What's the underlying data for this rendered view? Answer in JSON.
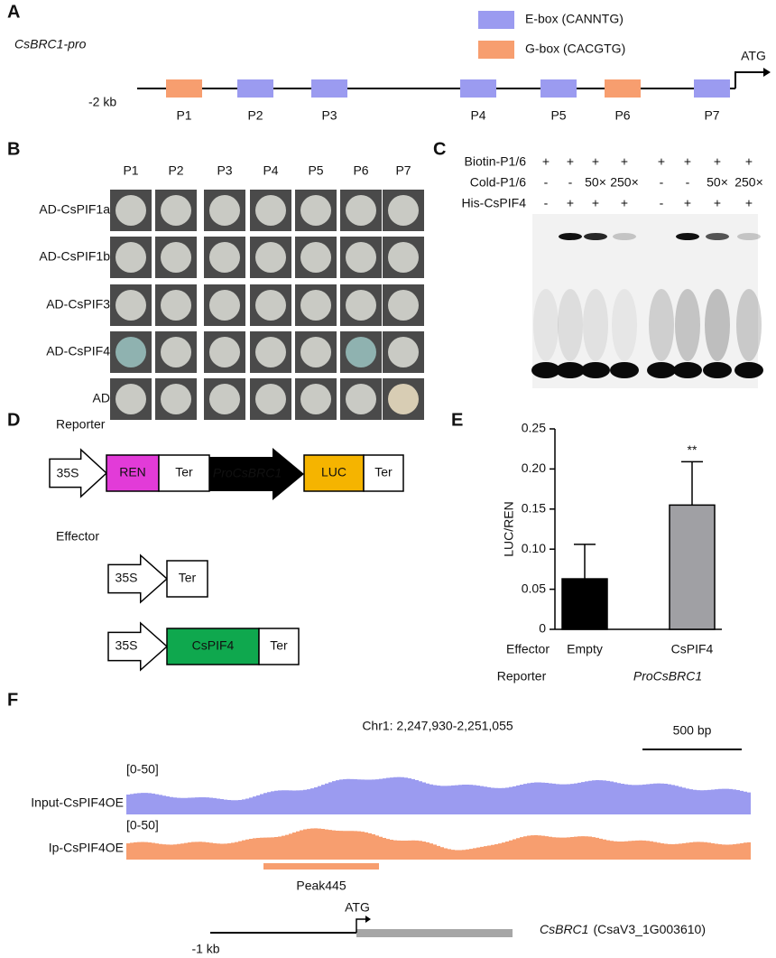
{
  "panel_a": {
    "label": "A",
    "promoter": "CsBRC1-pro",
    "legend": [
      {
        "name": "E-box (CANNTG)",
        "color": "#9b9bf0"
      },
      {
        "name": "G-box (CACGTG)",
        "color": "#f79e6f"
      }
    ],
    "start": "-2 kb",
    "atg": "ATG",
    "sites": [
      {
        "name": "P1",
        "color": "#f79e6f"
      },
      {
        "name": "P2",
        "color": "#9b9bf0"
      },
      {
        "name": "P3",
        "color": "#9b9bf0"
      },
      {
        "name": "P4",
        "color": "#9b9bf0"
      },
      {
        "name": "P5",
        "color": "#9b9bf0"
      },
      {
        "name": "P6",
        "color": "#f79e6f"
      },
      {
        "name": "P7",
        "color": "#9b9bf0"
      }
    ]
  },
  "panel_b": {
    "label": "B",
    "columns": [
      "P1",
      "P2",
      "P3",
      "P4",
      "P5",
      "P6",
      "P7"
    ],
    "rows": [
      "AD-CsPIF1a",
      "AD-CsPIF1b",
      "AD-CsPIF3",
      "AD-CsPIF4",
      "AD"
    ]
  },
  "panel_c": {
    "label": "C",
    "rows": [
      {
        "name": "Biotin-P1/6",
        "cells": [
          "+",
          "+",
          "+",
          "+",
          "+",
          "+",
          "+",
          "+"
        ]
      },
      {
        "name": "Cold-P1/6",
        "cells": [
          "-",
          "-",
          "50×",
          "250×",
          "-",
          "-",
          "50×",
          "250×"
        ]
      },
      {
        "name": "His-CsPIF4",
        "cells": [
          "-",
          "+",
          "+",
          "+",
          "-",
          "+",
          "+",
          "+"
        ]
      }
    ]
  },
  "panel_d": {
    "label": "D",
    "reporter": {
      "title": "Reporter",
      "parts": [
        "35S",
        "REN",
        "Ter",
        "ProCsBRC1",
        "LUC",
        "Ter"
      ]
    },
    "effector": {
      "title": "Effector",
      "constructs": [
        [
          "35S",
          "Ter"
        ],
        [
          "35S",
          "CsPIF4",
          "Ter"
        ]
      ]
    }
  },
  "chart_data": {
    "type": "bar",
    "label": "E",
    "ylabel": "LUC/REN",
    "categories": [
      "Empty",
      "CsPIF4"
    ],
    "values": [
      0.063,
      0.155
    ],
    "errors": [
      0.043,
      0.054
    ],
    "colors": [
      "#000000",
      "#a0a0a4"
    ],
    "significance": [
      null,
      "**"
    ],
    "ylim": [
      0,
      0.25
    ],
    "yticks": [
      0,
      0.05,
      {
        "value": 0.1,
        "label": "0.10"
      },
      0.15,
      {
        "value": 0.2,
        "label": "0.20"
      },
      0.25
    ],
    "row_labels": {
      "effector": "Effector",
      "reporter": "Reporter",
      "reporter_name": "ProCsBRC1"
    }
  },
  "panel_f": {
    "label": "F",
    "region": "Chr1: 2,247,930-2,251,055",
    "scale": "500 bp",
    "tracks": [
      {
        "name": "Input-CsPIF4OE",
        "range": "[0-50]",
        "color": "#9b9bf0"
      },
      {
        "name": "Ip-CsPIF4OE",
        "range": "[0-50]",
        "color": "#f79e6f"
      }
    ],
    "peak": "Peak445",
    "atg": "ATG",
    "start": "-1 kb",
    "gene": "CsBRC1",
    "gene_id": "(CsaV3_1G003610)"
  }
}
